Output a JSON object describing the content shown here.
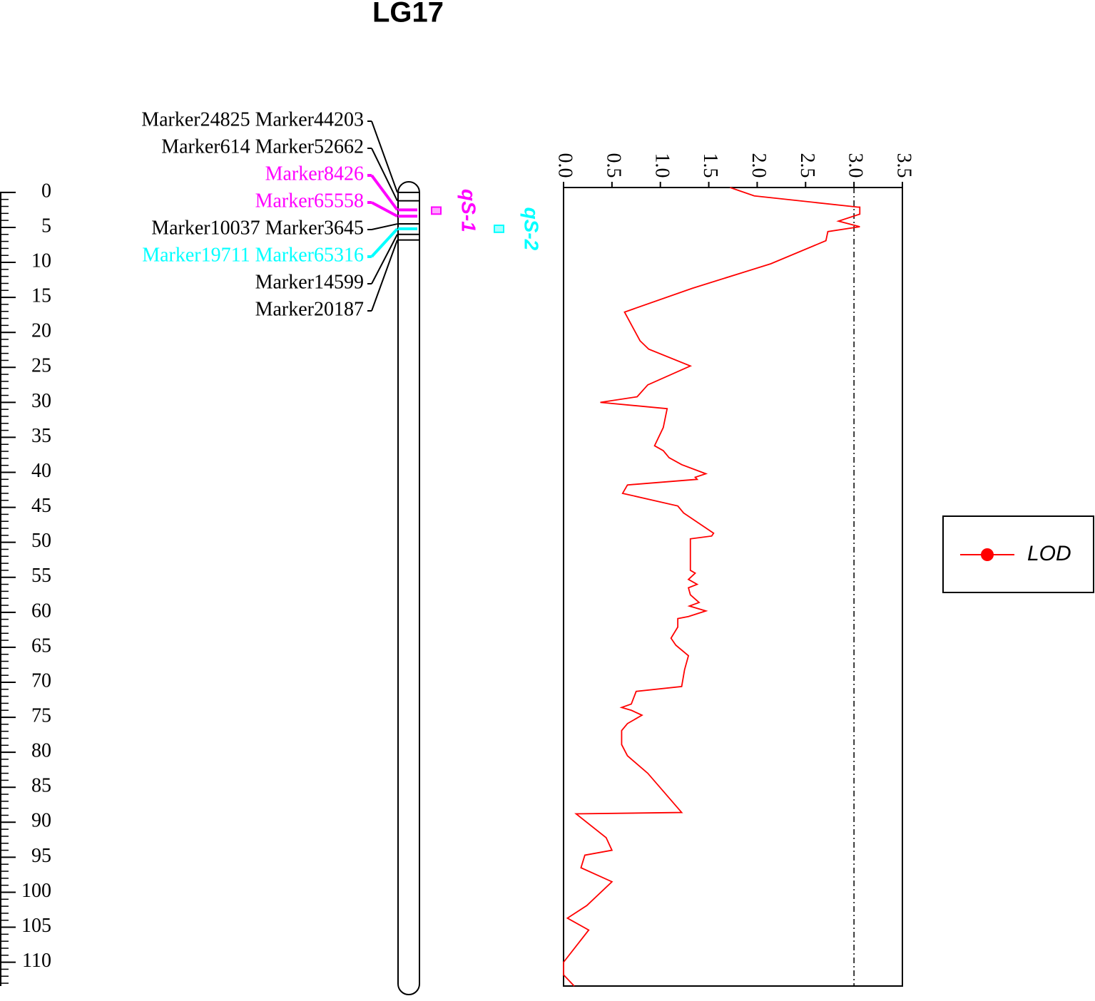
{
  "chart_data": {
    "type": "linkagemap",
    "title": "LG17",
    "ylim": [
      -0.7,
      113.4
    ],
    "yticks": [
      0,
      5,
      10,
      15,
      20,
      25,
      30,
      35,
      40,
      45,
      50,
      55,
      60,
      65,
      70,
      75,
      80,
      85,
      90,
      95,
      100,
      105,
      110
    ],
    "markers": [
      {
        "label": "Marker24825 Marker44203",
        "position": 0.0,
        "color": "#000000"
      },
      {
        "label": "Marker614 Marker52662",
        "position": 1.2,
        "color": "#000000"
      },
      {
        "label": "Marker8426",
        "position": 2.5,
        "color": "#ff00ff"
      },
      {
        "label": "Marker65558",
        "position": 3.4,
        "color": "#ff00ff"
      },
      {
        "label": "Marker10037 Marker3645",
        "position": 4.5,
        "color": "#000000"
      },
      {
        "label": "Marker19711 Marker65316",
        "position": 5.2,
        "color": "#00ffff"
      },
      {
        "label": "Marker14599",
        "position": 6.0,
        "color": "#000000"
      },
      {
        "label": "Marker20187",
        "position": 6.8,
        "color": "#000000"
      }
    ],
    "qtls": [
      {
        "name": "qS-1",
        "color": "#ff00ff",
        "start": 2.1,
        "end": 3.1
      },
      {
        "name": "qS-2",
        "color": "#00ffff",
        "start": 4.7,
        "end": 5.7
      }
    ],
    "xlim": [
      0,
      3.5
    ],
    "xticks": [
      {
        "value": 0,
        "label": "0.0"
      },
      0.5,
      {
        "value": 1,
        "label": "1.0"
      },
      1.5,
      {
        "value": 2,
        "label": "2.0"
      },
      2.5,
      {
        "value": 3,
        "label": "3.0"
      },
      3.5
    ],
    "threshold": 3.0,
    "legend": "right",
    "series": [
      {
        "name": "LOD",
        "color": "#ff0000",
        "x": [
          -0.7,
          0.5,
          2.1,
          2.1,
          3.1,
          4.1,
          4.9,
          5.6,
          6.9,
          10.2,
          13.7,
          17.1,
          21.2,
          22.4,
          24.8,
          27.5,
          29.2,
          30.0,
          30.9,
          33.6,
          36.2,
          36.9,
          37.9,
          38.9,
          40.2,
          40.7,
          41.0,
          41.8,
          43.0,
          44.8,
          45.8,
          48.7,
          49.1,
          49.5,
          54.0,
          54.4,
          55.3,
          56.0,
          56.5,
          57.5,
          58.6,
          59.1,
          59.8,
          60.6,
          60.9,
          62.1,
          63.7,
          64.7,
          66.2,
          68.2,
          70.6,
          71.3,
          73.1,
          73.6,
          74.0,
          74.7,
          75.9,
          76.9,
          78.9,
          80.5,
          83.0,
          88.6,
          88.8,
          92.2,
          94.0,
          94.7,
          96.5,
          98.5,
          101.9,
          103.7,
          105.4,
          110.0,
          111.8,
          113.4
        ],
        "values": [
          1.72,
          1.97,
          3.04,
          3.06,
          3.06,
          2.84,
          3.06,
          2.73,
          2.71,
          2.14,
          1.33,
          0.63,
          0.79,
          0.88,
          1.31,
          0.87,
          0.76,
          0.38,
          1.07,
          1.03,
          0.94,
          1.03,
          1.09,
          1.22,
          1.47,
          1.36,
          1.38,
          0.66,
          0.61,
          1.18,
          1.24,
          1.55,
          1.53,
          1.31,
          1.31,
          1.36,
          1.29,
          1.38,
          1.29,
          1.31,
          1.4,
          1.3,
          1.47,
          1.29,
          1.18,
          1.18,
          1.11,
          1.16,
          1.29,
          1.25,
          1.22,
          0.75,
          0.7,
          0.6,
          0.7,
          0.81,
          0.66,
          0.6,
          0.6,
          0.66,
          0.87,
          1.22,
          0.13,
          0.44,
          0.5,
          0.22,
          0.18,
          0.5,
          0.24,
          0.04,
          0.26,
          0.0,
          0.0,
          0.11
        ]
      }
    ]
  }
}
